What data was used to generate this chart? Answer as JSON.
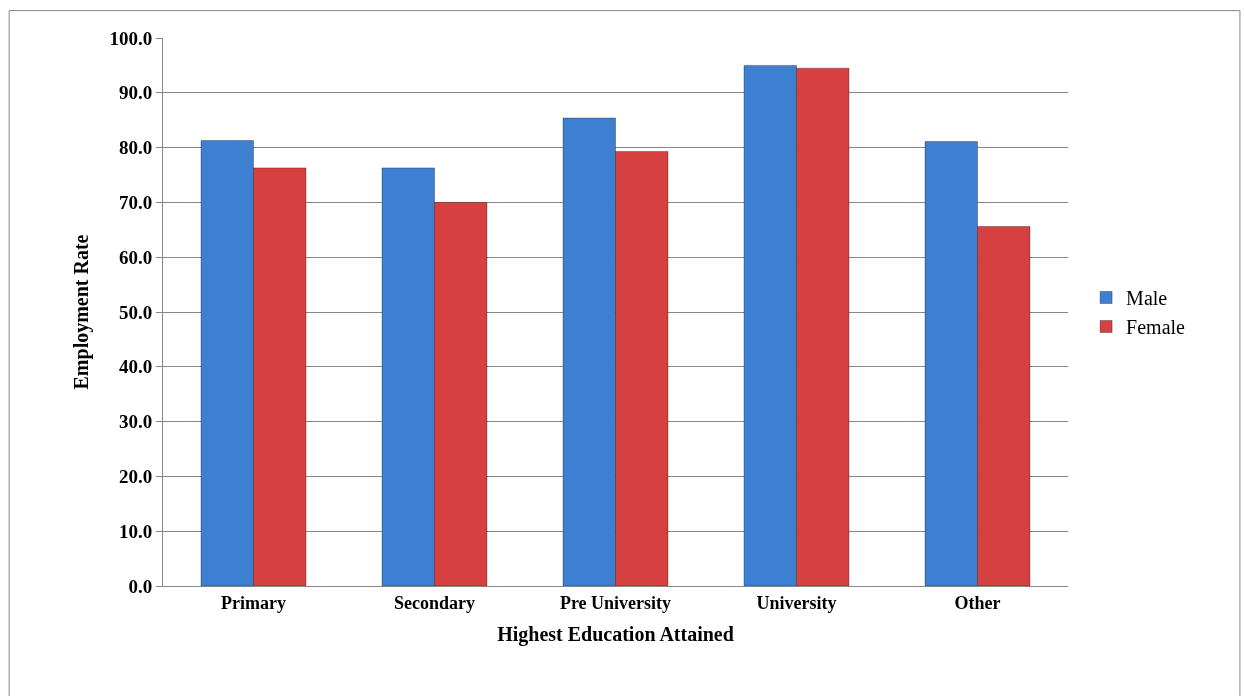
{
  "chart_data": {
    "type": "bar",
    "xlabel": "Highest Education Attained",
    "ylabel": "Employment Rate",
    "categories": [
      "Primary",
      "Secondary",
      "Pre University",
      "University",
      "Other"
    ],
    "series": [
      {
        "name": "Male",
        "color": "#3d7fd0",
        "values": [
          81.3,
          76.3,
          85.4,
          95.0,
          81.1
        ]
      },
      {
        "name": "Female",
        "color": "#d64040",
        "values": [
          76.3,
          70.0,
          79.3,
          94.5,
          65.6
        ]
      }
    ],
    "ylim": [
      0,
      100
    ],
    "yticks": [
      {
        "value": 0,
        "label": "0.0"
      },
      {
        "value": 10,
        "label": "10.0"
      },
      {
        "value": 20,
        "label": "20.0"
      },
      {
        "value": 30,
        "label": "30.0"
      },
      {
        "value": 40,
        "label": "40.0"
      },
      {
        "value": 50,
        "label": "50.0"
      },
      {
        "value": 60,
        "label": "60.0"
      },
      {
        "value": 70,
        "label": "70.0"
      },
      {
        "value": 80,
        "label": "80.0"
      },
      {
        "value": 90,
        "label": "90.0"
      },
      {
        "value": 100,
        "label": "100.0"
      }
    ],
    "grid": "y",
    "legend": "right"
  }
}
